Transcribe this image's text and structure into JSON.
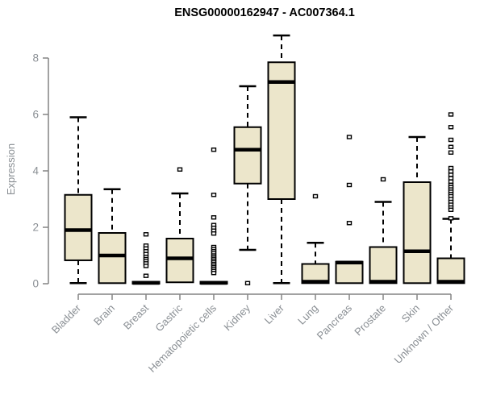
{
  "chart_data": {
    "type": "boxplot",
    "title": "ENSG00000162947 - AC007364.1",
    "ylabel": "Expression",
    "xlabel": "",
    "ylim": [
      0,
      8.9
    ],
    "yticks": [
      0,
      2,
      4,
      6,
      8
    ],
    "grid": false,
    "legend": "none",
    "style": {
      "background": "#FFFFFF",
      "box_fill": "#ECE6CB",
      "box_stroke": "#000000",
      "median_color": "#000000",
      "whisker_color": "#000000",
      "outlier_fill": "#FFFFFF",
      "axis_color": "#848484",
      "label_color": "#8A8F94",
      "title_color": "#000000"
    },
    "categories": [
      "Bladder",
      "Brain",
      "Breast",
      "Gastric",
      "Hematopoietic cells",
      "Kidney",
      "Liver",
      "Lung",
      "Pancreas",
      "Prostate",
      "Skin",
      "Unknown / Other"
    ],
    "series": [
      {
        "label": "Bladder",
        "whisker_low": 0.02,
        "q1": 0.83,
        "median": 1.9,
        "q3": 3.15,
        "whisker_high": 5.9,
        "outliers": []
      },
      {
        "label": "Brain",
        "whisker_low": 0.0,
        "q1": 0.02,
        "median": 1.0,
        "q3": 1.8,
        "whisker_high": 3.35,
        "outliers": []
      },
      {
        "label": "Breast",
        "whisker_low": 0.0,
        "q1": 0.0,
        "median": 0.03,
        "q3": 0.07,
        "whisker_high": 0.1,
        "outliers": [
          1.75,
          1.35,
          1.25,
          1.15,
          1.05,
          0.95,
          0.87,
          0.8,
          0.72,
          0.63,
          0.28
        ]
      },
      {
        "label": "Gastric",
        "whisker_low": 0.02,
        "q1": 0.05,
        "median": 0.9,
        "q3": 1.6,
        "whisker_high": 3.2,
        "outliers": [
          4.05
        ]
      },
      {
        "label": "Hematopoietic cells",
        "whisker_low": 0.0,
        "q1": 0.0,
        "median": 0.03,
        "q3": 0.07,
        "whisker_high": 0.1,
        "outliers": [
          4.75,
          3.15,
          2.35,
          2.08,
          1.98,
          1.88,
          1.78,
          1.3,
          1.22,
          1.15,
          1.08,
          1.0,
          0.94,
          0.88,
          0.82,
          0.76,
          0.7,
          0.64,
          0.58,
          0.52,
          0.45,
          0.38
        ]
      },
      {
        "label": "Kidney",
        "whisker_low": 1.2,
        "q1": 3.55,
        "median": 4.75,
        "q3": 5.55,
        "whisker_high": 7.0,
        "outliers": [
          0.02
        ]
      },
      {
        "label": "Liver",
        "whisker_low": 0.02,
        "q1": 3.0,
        "median": 7.15,
        "q3": 7.85,
        "whisker_high": 8.8,
        "outliers": []
      },
      {
        "label": "Lung",
        "whisker_low": 0.0,
        "q1": 0.02,
        "median": 0.07,
        "q3": 0.7,
        "whisker_high": 1.45,
        "outliers": [
          3.1
        ]
      },
      {
        "label": "Pancreas",
        "whisker_low": 0.0,
        "q1": 0.02,
        "median": 0.75,
        "q3": 0.78,
        "whisker_high": 0.78,
        "outliers": [
          5.2,
          3.5,
          2.15
        ]
      },
      {
        "label": "Prostate",
        "whisker_low": 0.0,
        "q1": 0.02,
        "median": 0.07,
        "q3": 1.3,
        "whisker_high": 2.9,
        "outliers": [
          3.7
        ]
      },
      {
        "label": "Skin",
        "whisker_low": 0.0,
        "q1": 0.02,
        "median": 1.15,
        "q3": 3.6,
        "whisker_high": 5.2,
        "outliers": []
      },
      {
        "label": "Unknown / Other",
        "whisker_low": 0.0,
        "q1": 0.02,
        "median": 0.07,
        "q3": 0.9,
        "whisker_high": 2.3,
        "outliers": [
          6.0,
          5.55,
          5.1,
          4.85,
          4.65,
          4.1,
          3.98,
          3.86,
          3.74,
          3.62,
          3.5,
          3.42,
          3.34,
          3.26,
          3.18,
          3.1,
          3.0,
          2.9,
          2.8,
          2.7,
          2.62,
          2.32
        ]
      }
    ]
  }
}
